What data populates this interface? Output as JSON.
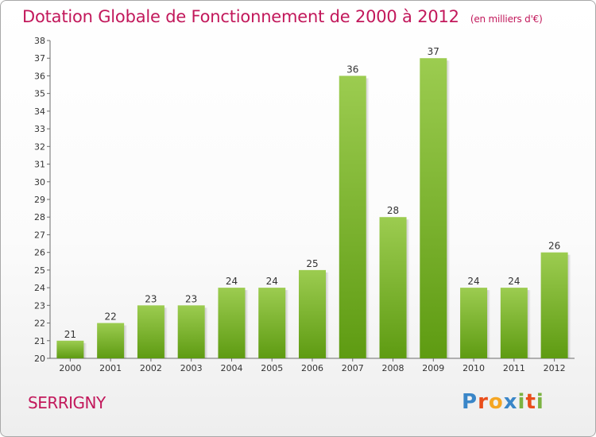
{
  "header": {
    "title": "Dotation Globale de Fonctionnement de 2000 à 2012",
    "unit": "(en milliers d'€)"
  },
  "footer": {
    "commune": "SERRIGNY",
    "logo_letters": [
      "P",
      "r",
      "o",
      "x",
      "i",
      "t",
      "i"
    ],
    "logo_colors": [
      "#3a86c8",
      "#e94e1b",
      "#f5a623",
      "#3a86c8",
      "#7cb342",
      "#e94e1b",
      "#7cb342"
    ]
  },
  "chart_data": {
    "type": "bar",
    "title": "Dotation Globale de Fonctionnement de 2000 à 2012",
    "subtitle": "(en milliers d'€)",
    "xlabel": "",
    "ylabel": "",
    "categories": [
      "2000",
      "2001",
      "2002",
      "2003",
      "2004",
      "2005",
      "2006",
      "2007",
      "2008",
      "2009",
      "2010",
      "2011",
      "2012"
    ],
    "values": [
      21,
      22,
      23,
      23,
      24,
      24,
      25,
      36,
      28,
      37,
      24,
      24,
      26
    ],
    "ylim": [
      20,
      38
    ],
    "yticks": [
      20,
      21,
      22,
      23,
      24,
      25,
      26,
      27,
      28,
      29,
      30,
      31,
      32,
      33,
      34,
      35,
      36,
      37,
      38
    ],
    "grid": false,
    "legend": "none",
    "bar_color_top": "#9ccc50",
    "bar_color_bottom": "#5e9b12"
  }
}
